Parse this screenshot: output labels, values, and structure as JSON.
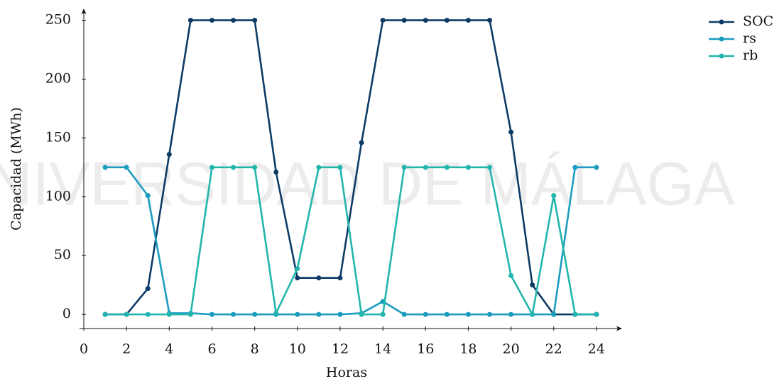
{
  "chart_data": {
    "type": "line",
    "watermark": "UNIVERSIDAD DE MÁLAGA",
    "xlabel": "Horas",
    "ylabel": "Capacidad (MWh)",
    "x": [
      1,
      2,
      3,
      4,
      5,
      6,
      7,
      8,
      9,
      10,
      11,
      12,
      13,
      14,
      15,
      16,
      17,
      18,
      19,
      20,
      21,
      22,
      23,
      24
    ],
    "series": [
      {
        "name": "SOC",
        "color": "#0d3b66",
        "values": [
          0,
          0,
          22,
          136,
          250,
          250,
          250,
          250,
          121,
          31,
          31,
          31,
          146,
          250,
          250,
          250,
          250,
          250,
          250,
          155,
          25,
          0,
          0,
          0
        ]
      },
      {
        "name": "rs",
        "color": "#1a9cc0",
        "values": [
          125,
          125,
          101,
          1,
          1,
          0,
          0,
          0,
          0,
          0,
          0,
          0,
          1,
          11,
          0,
          0,
          0,
          0,
          0,
          0,
          0,
          0,
          125,
          125
        ]
      },
      {
        "name": "rb",
        "color": "#22b5ad",
        "values": [
          0,
          0,
          0,
          0,
          0,
          125,
          125,
          125,
          1,
          39,
          125,
          125,
          0,
          0,
          125,
          125,
          125,
          125,
          125,
          33,
          0,
          101,
          0,
          0
        ]
      }
    ],
    "xlim": [
      -0.2,
      25.2
    ],
    "ylim": [
      -12,
      260
    ],
    "xticks": [
      0,
      2,
      4,
      6,
      8,
      10,
      12,
      14,
      16,
      18,
      20,
      22,
      24
    ],
    "yticks": [
      0,
      50,
      100,
      150,
      200,
      250
    ],
    "legend": "upper right"
  }
}
